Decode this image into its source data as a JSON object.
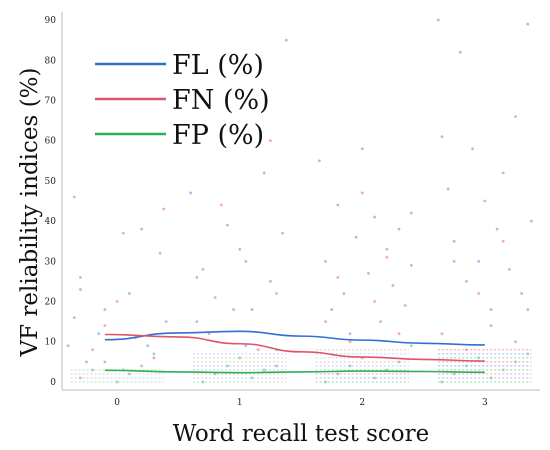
{
  "chart_data": {
    "type": "scatter",
    "xlabel": "Word recall test score",
    "ylabel": "VF reliability indices (%)",
    "xlim": [
      -0.45,
      3.45
    ],
    "ylim": [
      -2,
      92
    ],
    "x_ticks": [
      0,
      1,
      2,
      3
    ],
    "x_tick_labels": [
      "0",
      "1",
      "2",
      "3"
    ],
    "y_ticks": [
      0,
      10,
      20,
      30,
      40,
      50,
      60,
      70,
      80,
      90
    ],
    "y_tick_labels": [
      "0",
      "10",
      "20",
      "30",
      "40",
      "50",
      "60",
      "70",
      "80",
      "90"
    ],
    "grid": false,
    "legend_position": "top-left",
    "series": [
      {
        "name": "FL (%)",
        "color": "#2f6fd6",
        "point_color": "#9fb6ee",
        "trend": [
          [
            -0.1,
            10.5
          ],
          [
            0.5,
            12.2
          ],
          [
            1.0,
            12.6
          ],
          [
            1.5,
            11.4
          ],
          [
            2.0,
            10.4
          ],
          [
            2.5,
            9.6
          ],
          [
            3.0,
            9.2
          ]
        ],
        "points": [
          [
            -0.4,
            9
          ],
          [
            -0.35,
            16
          ],
          [
            -0.3,
            23
          ],
          [
            -0.25,
            5
          ],
          [
            -0.15,
            12
          ],
          [
            -0.1,
            18
          ],
          [
            0.05,
            3
          ],
          [
            0.1,
            22
          ],
          [
            0.2,
            38
          ],
          [
            0.25,
            9
          ],
          [
            0.35,
            32
          ],
          [
            0.4,
            15
          ],
          [
            0.6,
            47
          ],
          [
            0.65,
            15
          ],
          [
            0.7,
            28
          ],
          [
            0.8,
            21
          ],
          [
            0.9,
            39
          ],
          [
            1.0,
            33
          ],
          [
            1.05,
            9
          ],
          [
            1.1,
            18
          ],
          [
            1.2,
            52
          ],
          [
            1.25,
            25
          ],
          [
            1.3,
            4
          ],
          [
            1.35,
            37
          ],
          [
            1.38,
            85
          ],
          [
            1.65,
            55
          ],
          [
            1.7,
            30
          ],
          [
            1.75,
            18
          ],
          [
            1.8,
            44
          ],
          [
            1.85,
            22
          ],
          [
            1.9,
            12
          ],
          [
            1.95,
            36
          ],
          [
            2.0,
            58
          ],
          [
            2.05,
            27
          ],
          [
            2.1,
            41
          ],
          [
            2.15,
            15
          ],
          [
            2.2,
            33
          ],
          [
            2.25,
            24
          ],
          [
            2.3,
            38
          ],
          [
            2.35,
            19
          ],
          [
            2.4,
            29
          ],
          [
            2.62,
            90
          ],
          [
            2.65,
            61
          ],
          [
            2.7,
            48
          ],
          [
            2.75,
            35
          ],
          [
            2.8,
            82
          ],
          [
            2.85,
            25
          ],
          [
            2.9,
            58
          ],
          [
            2.95,
            30
          ],
          [
            3.0,
            45
          ],
          [
            3.05,
            18
          ],
          [
            3.1,
            38
          ],
          [
            3.15,
            52
          ],
          [
            3.2,
            28
          ],
          [
            3.25,
            66
          ],
          [
            3.3,
            22
          ],
          [
            3.35,
            89
          ],
          [
            3.38,
            40
          ]
        ]
      },
      {
        "name": "FN (%)",
        "color": "#e0546a",
        "point_color": "#ef9fab",
        "trend": [
          [
            -0.1,
            11.8
          ],
          [
            0.5,
            11.2
          ],
          [
            1.0,
            9.5
          ],
          [
            1.5,
            7.5
          ],
          [
            2.0,
            6.2
          ],
          [
            2.5,
            5.6
          ],
          [
            3.0,
            5.2
          ]
        ],
        "points": [
          [
            -0.35,
            46
          ],
          [
            -0.3,
            26
          ],
          [
            -0.2,
            8
          ],
          [
            -0.1,
            14
          ],
          [
            0.0,
            20
          ],
          [
            0.05,
            37
          ],
          [
            0.15,
            11
          ],
          [
            0.3,
            6
          ],
          [
            0.38,
            43
          ],
          [
            0.65,
            26
          ],
          [
            0.75,
            12
          ],
          [
            0.85,
            44
          ],
          [
            0.95,
            18
          ],
          [
            1.05,
            30
          ],
          [
            1.15,
            8
          ],
          [
            1.25,
            60
          ],
          [
            1.3,
            22
          ],
          [
            1.7,
            15
          ],
          [
            1.8,
            26
          ],
          [
            1.9,
            10
          ],
          [
            2.0,
            47
          ],
          [
            2.1,
            20
          ],
          [
            2.2,
            31
          ],
          [
            2.3,
            12
          ],
          [
            2.4,
            42
          ],
          [
            2.65,
            12
          ],
          [
            2.75,
            30
          ],
          [
            2.85,
            8
          ],
          [
            2.95,
            22
          ],
          [
            3.05,
            14
          ],
          [
            3.15,
            35
          ],
          [
            3.25,
            10
          ],
          [
            3.35,
            18
          ]
        ]
      },
      {
        "name": "FP (%)",
        "color": "#2eae55",
        "point_color": "#8fd6a2",
        "trend": [
          [
            -0.1,
            2.9
          ],
          [
            0.5,
            2.5
          ],
          [
            1.0,
            2.3
          ],
          [
            1.5,
            2.5
          ],
          [
            2.0,
            2.7
          ],
          [
            2.5,
            2.6
          ],
          [
            3.0,
            2.4
          ]
        ],
        "points": [
          [
            -0.3,
            1
          ],
          [
            -0.2,
            3
          ],
          [
            -0.1,
            5
          ],
          [
            0.0,
            0
          ],
          [
            0.1,
            2
          ],
          [
            0.2,
            4
          ],
          [
            0.3,
            7
          ],
          [
            0.7,
            0
          ],
          [
            0.8,
            2
          ],
          [
            0.9,
            4
          ],
          [
            1.0,
            6
          ],
          [
            1.1,
            1
          ],
          [
            1.2,
            3
          ],
          [
            1.3,
            8
          ],
          [
            1.7,
            0
          ],
          [
            1.8,
            2
          ],
          [
            1.9,
            4
          ],
          [
            2.0,
            6
          ],
          [
            2.1,
            1
          ],
          [
            2.2,
            3
          ],
          [
            2.3,
            5
          ],
          [
            2.4,
            9
          ],
          [
            2.65,
            0
          ],
          [
            2.75,
            2
          ],
          [
            2.85,
            4
          ],
          [
            2.95,
            6
          ],
          [
            3.05,
            1
          ],
          [
            3.15,
            3
          ],
          [
            3.25,
            5
          ],
          [
            3.35,
            7
          ]
        ]
      }
    ]
  }
}
